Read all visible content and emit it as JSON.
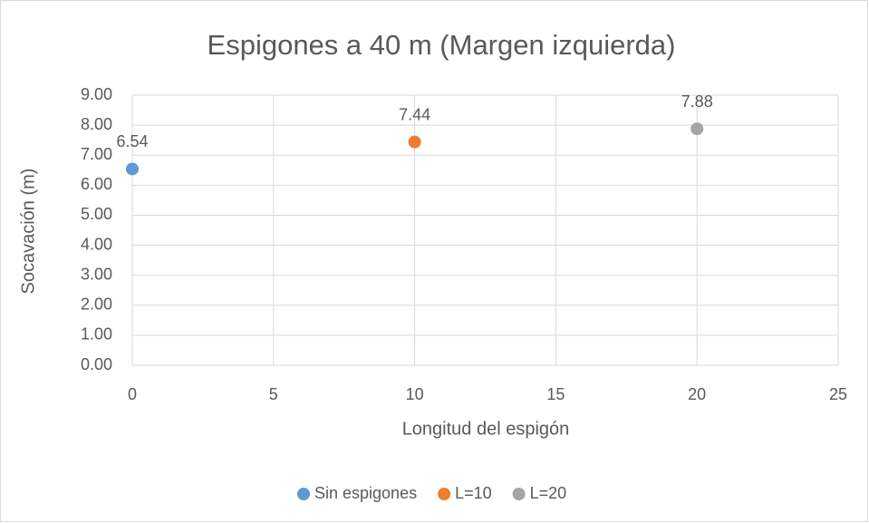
{
  "chart_data": {
    "type": "scatter",
    "title": "Espigones a 40 m (Margen izquierda)",
    "x_label": "Longitud del espigón",
    "y_label": "Socavación (m)",
    "series": [
      {
        "name": "Sin espigones",
        "color": "#5b9bd5",
        "x": [
          0
        ],
        "values": [
          6.54
        ]
      },
      {
        "name": "L=10",
        "color": "#ed7d31",
        "x": [
          10
        ],
        "values": [
          7.44
        ]
      },
      {
        "name": "L=20",
        "color": "#a5a5a5",
        "x": [
          20
        ],
        "values": [
          7.88
        ]
      }
    ],
    "xlim": [
      0,
      25
    ],
    "xticks": [
      0,
      5,
      10,
      15,
      20,
      25
    ],
    "ylim": [
      0,
      9
    ],
    "yticks": [
      {
        "value": 0,
        "label": "0.00"
      },
      {
        "value": 1,
        "label": "1.00"
      },
      {
        "value": 2,
        "label": "2.00"
      },
      {
        "value": 3,
        "label": "3.00"
      },
      {
        "value": 4,
        "label": "4.00"
      },
      {
        "value": 5,
        "label": "5.00"
      },
      {
        "value": 6,
        "label": "6.00"
      },
      {
        "value": 7,
        "label": "7.00"
      },
      {
        "value": 8,
        "label": "8.00"
      },
      {
        "value": 9,
        "label": "9.00"
      }
    ],
    "grid": true,
    "legend": "bottom"
  }
}
